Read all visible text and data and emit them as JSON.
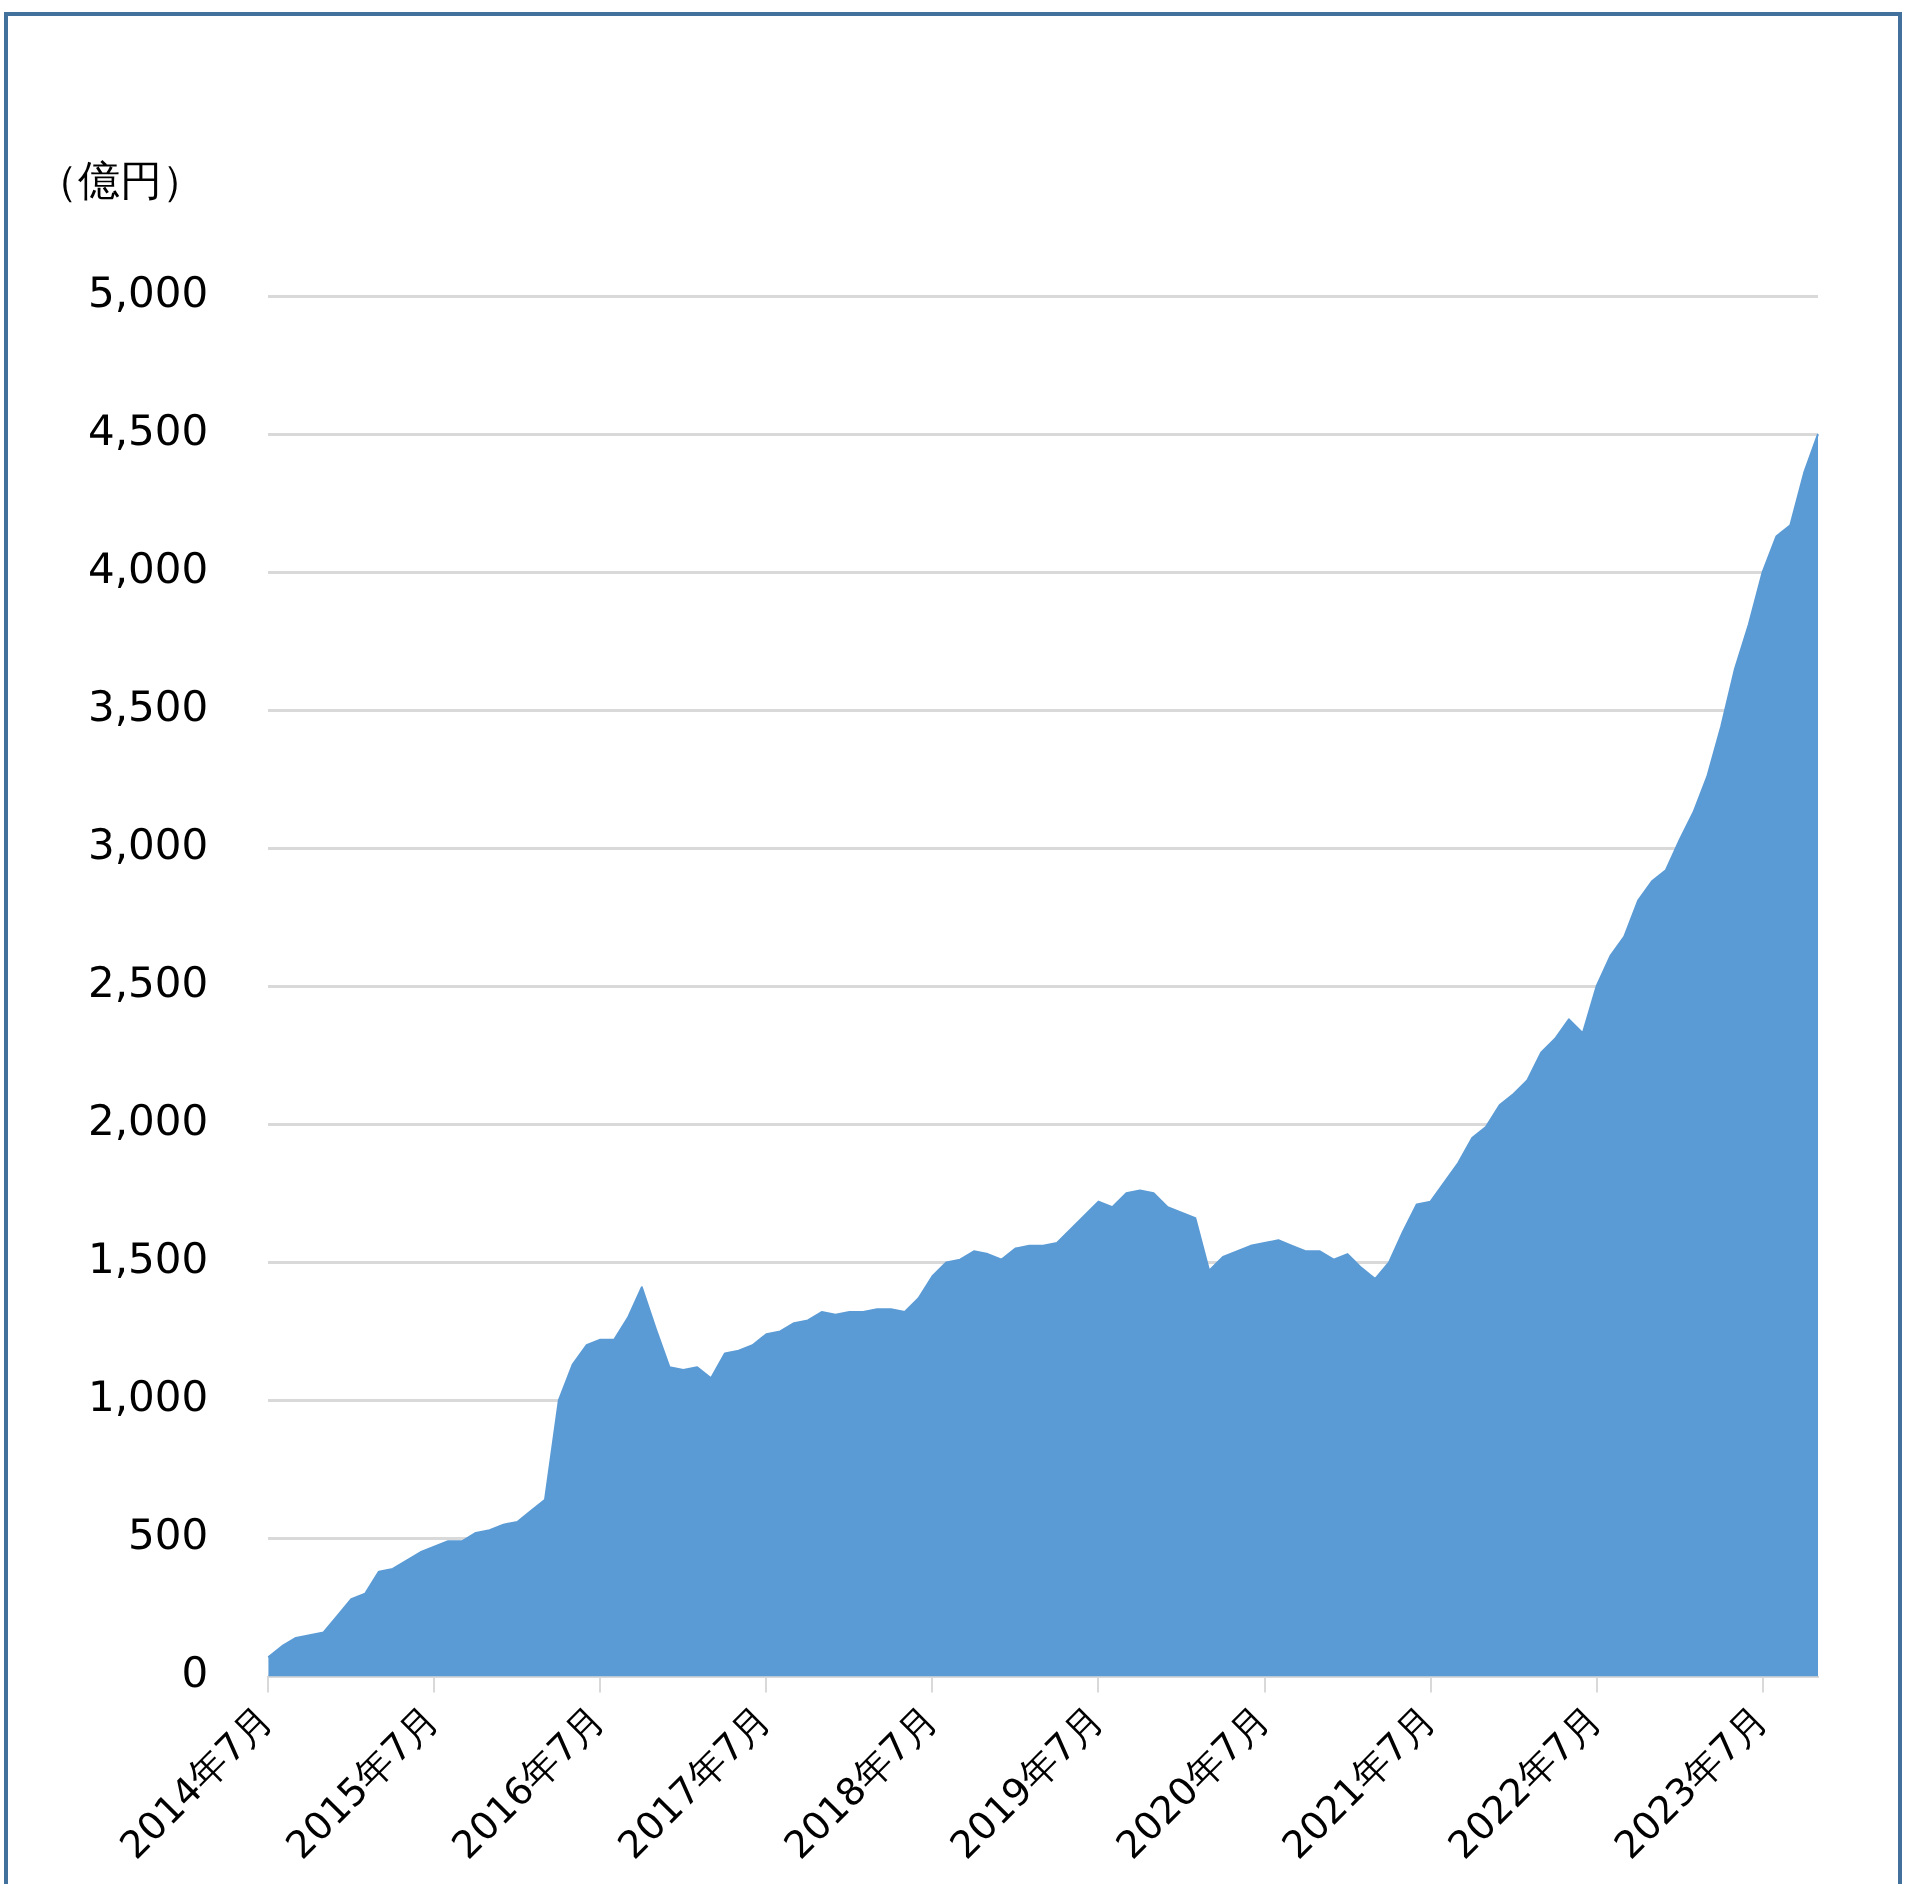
{
  "chart_data": {
    "type": "area",
    "ylabel": "（億円）",
    "categories": [
      "2014年7月",
      null,
      null,
      null,
      null,
      null,
      null,
      null,
      null,
      null,
      null,
      null,
      "2015年7月",
      null,
      null,
      null,
      null,
      null,
      null,
      null,
      null,
      null,
      null,
      null,
      "2016年7月",
      null,
      null,
      null,
      null,
      null,
      null,
      null,
      null,
      null,
      null,
      null,
      "2017年7月",
      null,
      null,
      null,
      null,
      null,
      null,
      null,
      null,
      null,
      null,
      null,
      "2018年7月",
      null,
      null,
      null,
      null,
      null,
      null,
      null,
      null,
      null,
      null,
      null,
      "2019年7月",
      null,
      null,
      null,
      null,
      null,
      null,
      null,
      null,
      null,
      null,
      null,
      "2020年7月",
      null,
      null,
      null,
      null,
      null,
      null,
      null,
      null,
      null,
      null,
      null,
      "2021年7月",
      null,
      null,
      null,
      null,
      null,
      null,
      null,
      null,
      null,
      null,
      null,
      "2022年7月",
      null,
      null,
      null,
      null,
      null,
      null,
      null,
      null,
      null,
      null,
      null,
      "2023年7月",
      null,
      null,
      null,
      null
    ],
    "series": [
      {
        "color": "#5b9bd5",
        "values": [
          70,
          110,
          140,
          150,
          160,
          220,
          280,
          300,
          380,
          390,
          420,
          450,
          470,
          490,
          490,
          520,
          530,
          550,
          560,
          600,
          640,
          1000,
          1130,
          1200,
          1220,
          1220,
          1300,
          1410,
          1260,
          1120,
          1110,
          1120,
          1080,
          1170,
          1180,
          1200,
          1240,
          1250,
          1280,
          1290,
          1320,
          1310,
          1320,
          1320,
          1330,
          1330,
          1320,
          1370,
          1450,
          1500,
          1510,
          1540,
          1530,
          1510,
          1550,
          1560,
          1560,
          1570,
          1620,
          1670,
          1720,
          1700,
          1750,
          1760,
          1750,
          1700,
          1680,
          1660,
          1470,
          1520,
          1540,
          1560,
          1570,
          1580,
          1560,
          1540,
          1540,
          1510,
          1530,
          1480,
          1440,
          1500,
          1610,
          1710,
          1720,
          1790,
          1860,
          1950,
          1990,
          2070,
          2110,
          2160,
          2260,
          2310,
          2380,
          2330,
          2500,
          2610,
          2680,
          2810,
          2880,
          2920,
          3030,
          3130,
          3260,
          3440,
          3650,
          3810,
          4000,
          4130,
          4170,
          4360,
          4500
        ]
      }
    ],
    "ylim": [
      0,
      5000
    ],
    "yticks": [
      0,
      500,
      {
        "value": 1000,
        "label": "1,000"
      },
      {
        "value": 1500,
        "label": "1,500"
      },
      {
        "value": 2000,
        "label": "2,000"
      },
      {
        "value": 2500,
        "label": "2,500"
      },
      {
        "value": 3000,
        "label": "3,000"
      },
      {
        "value": 3500,
        "label": "3,500"
      },
      {
        "value": 4000,
        "label": "4,000"
      },
      {
        "value": 4500,
        "label": "4,500"
      },
      {
        "value": 5000,
        "label": "5,000"
      }
    ],
    "grid": "y",
    "legend": false
  }
}
